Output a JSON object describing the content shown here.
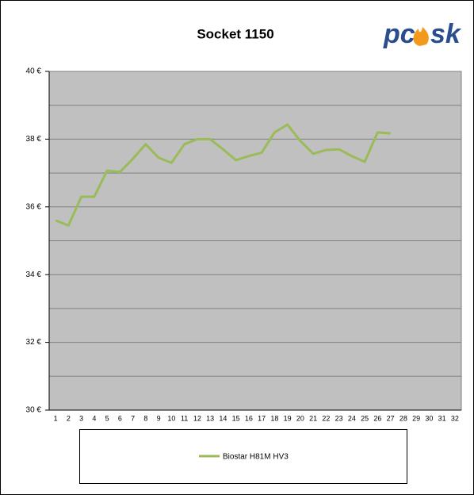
{
  "chart_data": {
    "type": "line",
    "title": "Socket 1150",
    "logo": {
      "left": "pc",
      "right": "sk"
    },
    "categories": [
      "1",
      "2",
      "3",
      "4",
      "5",
      "6",
      "7",
      "8",
      "9",
      "10",
      "11",
      "12",
      "13",
      "14",
      "15",
      "16",
      "17",
      "18",
      "19",
      "20",
      "21",
      "22",
      "23",
      "24",
      "25",
      "26",
      "27",
      "28",
      "29",
      "30",
      "31",
      "32"
    ],
    "series": [
      {
        "name": "Biostar H81M HV3",
        "color": "#9bbb59",
        "values": [
          35.6,
          35.45,
          36.3,
          36.3,
          37.07,
          37.03,
          37.42,
          37.85,
          37.45,
          37.3,
          37.85,
          38.0,
          38.0,
          37.7,
          37.38,
          37.5,
          37.6,
          38.2,
          38.43,
          37.95,
          37.57,
          37.68,
          37.7,
          37.5,
          37.33,
          38.2,
          38.17,
          null,
          null,
          null,
          null,
          null
        ]
      }
    ],
    "ylim": [
      30,
      40
    ],
    "yticks": [
      {
        "value": 30,
        "label": "30 €"
      },
      {
        "value": 32,
        "label": "32 €"
      },
      {
        "value": 34,
        "label": "34 €"
      },
      {
        "value": 36,
        "label": "36 €"
      },
      {
        "value": 38,
        "label": "38 €"
      },
      {
        "value": 40,
        "label": "40 €"
      }
    ],
    "minor_gridlines": [
      31,
      33,
      35,
      37,
      39
    ],
    "grid": true,
    "background": "#c0c0c0"
  }
}
